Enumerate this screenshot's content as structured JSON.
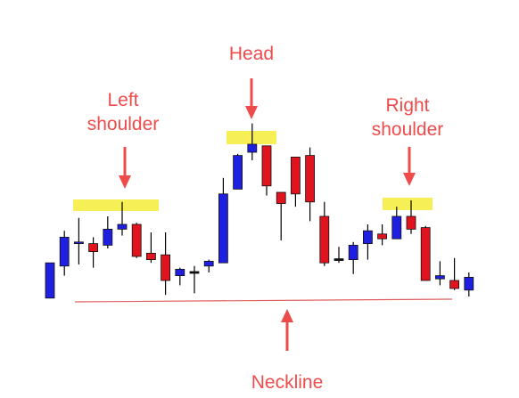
{
  "chart_data": {
    "type": "candlestick",
    "title": "",
    "xlabel": "",
    "ylabel": "",
    "ylim": [
      0,
      100
    ],
    "grid": false,
    "colors": {
      "up": "#1f1fe0",
      "down": "#e0141f",
      "annotation": "#ee4b4b",
      "highlight": "#f6ef55",
      "neckline": "#e06060"
    },
    "candles": [
      {
        "open": 14,
        "close": 36,
        "high": 36,
        "low": 14
      },
      {
        "open": 34,
        "close": 52,
        "high": 56,
        "low": 28
      },
      {
        "open": 48,
        "close": 49,
        "high": 64,
        "low": 35
      },
      {
        "open": 48,
        "close": 43,
        "high": 52,
        "low": 33
      },
      {
        "open": 47,
        "close": 57,
        "high": 65,
        "low": 45
      },
      {
        "open": 57,
        "close": 60,
        "high": 74,
        "low": 53
      },
      {
        "open": 60,
        "close": 40,
        "high": 61,
        "low": 39
      },
      {
        "open": 42,
        "close": 38,
        "high": 55,
        "low": 36
      },
      {
        "open": 41,
        "close": 25,
        "high": 55,
        "low": 16
      },
      {
        "open": 28,
        "close": 32,
        "high": 33,
        "low": 22
      },
      {
        "open": 30,
        "close": 30,
        "high": 34,
        "low": 17
      },
      {
        "open": 34,
        "close": 37,
        "high": 38,
        "low": 30
      },
      {
        "open": 36,
        "close": 79,
        "high": 89,
        "low": 36
      },
      {
        "open": 82,
        "close": 103,
        "high": 104,
        "low": 82
      },
      {
        "open": 105,
        "close": 110,
        "high": 123,
        "low": 100
      },
      {
        "open": 109,
        "close": 84,
        "high": 109,
        "low": 78
      },
      {
        "open": 80,
        "close": 73,
        "high": 80,
        "low": 50
      },
      {
        "open": 102,
        "close": 79,
        "high": 102,
        "low": 71
      },
      {
        "open": 103,
        "close": 74,
        "high": 108,
        "low": 62
      },
      {
        "open": 65,
        "close": 36,
        "high": 74,
        "low": 34
      },
      {
        "open": 38,
        "close": 38,
        "high": 46,
        "low": 36
      },
      {
        "open": 38,
        "close": 47,
        "high": 49,
        "low": 29
      },
      {
        "open": 48,
        "close": 56,
        "high": 60,
        "low": 38
      },
      {
        "open": 54,
        "close": 51,
        "high": 60,
        "low": 47
      },
      {
        "open": 51,
        "close": 65,
        "high": 71,
        "low": 51
      },
      {
        "open": 65,
        "close": 57,
        "high": 75,
        "low": 54
      },
      {
        "open": 58,
        "close": 25,
        "high": 59,
        "low": 25
      },
      {
        "open": 26,
        "close": 28,
        "high": 37,
        "low": 22
      },
      {
        "open": 25,
        "close": 20,
        "high": 39,
        "low": 19
      },
      {
        "open": 19,
        "close": 27,
        "high": 30,
        "low": 15
      }
    ],
    "annotations": [
      {
        "id": "left-shoulder",
        "lines": [
          "Left",
          "shoulder"
        ]
      },
      {
        "id": "head",
        "lines": [
          "Head"
        ]
      },
      {
        "id": "right-shoulder",
        "lines": [
          "Right",
          "shoulder"
        ]
      },
      {
        "id": "neckline",
        "lines": [
          "Neckline"
        ]
      }
    ]
  }
}
